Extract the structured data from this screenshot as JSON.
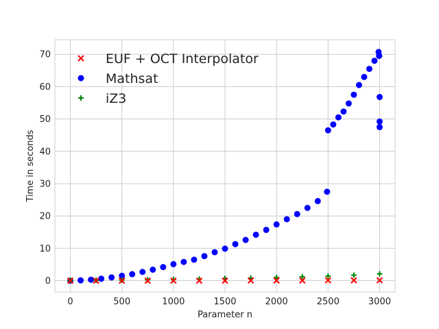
{
  "chart_data": {
    "type": "scatter",
    "xlabel": "Parameter n",
    "ylabel": "Time in seconds",
    "xlim": [
      -150,
      3150
    ],
    "ylim": [
      -3.5,
      74.5
    ],
    "xticks": [
      0,
      500,
      1000,
      1500,
      2000,
      2500,
      3000
    ],
    "yticks": [
      0,
      10,
      20,
      30,
      40,
      50,
      60,
      70
    ],
    "grid": true,
    "legend_position": "top-left",
    "series": [
      {
        "name": "EUF + OCT Interpolator",
        "marker": "x",
        "color": "#ff0000",
        "x": [
          0,
          250,
          500,
          750,
          1000,
          1250,
          1500,
          1750,
          2000,
          2250,
          2500,
          2750,
          3000
        ],
        "y": [
          0.0,
          0.0,
          0.0,
          0.0,
          0.0,
          0.0,
          0.0,
          0.05,
          0.05,
          0.05,
          0.1,
          0.1,
          0.1
        ]
      },
      {
        "name": "Mathsat",
        "marker": "o",
        "color": "#0000ff",
        "x": [
          0,
          100,
          200,
          300,
          400,
          500,
          600,
          700,
          800,
          900,
          1000,
          1100,
          1200,
          1300,
          1400,
          1500,
          1600,
          1700,
          1800,
          1900,
          2000,
          2100,
          2200,
          2300,
          2400,
          2490,
          2500,
          2550,
          2600,
          2650,
          2700,
          2750,
          2800,
          2850,
          2900,
          2950,
          2990,
          2995,
          3000,
          3000,
          3000
        ],
        "y": [
          0.0,
          0.1,
          0.3,
          0.6,
          1.0,
          1.5,
          2.0,
          2.7,
          3.4,
          4.2,
          5.1,
          5.8,
          6.5,
          7.6,
          8.8,
          9.9,
          11.3,
          12.6,
          14.2,
          15.7,
          17.4,
          19.0,
          20.6,
          22.5,
          24.6,
          27.5,
          46.5,
          48.3,
          50.5,
          52.3,
          54.8,
          57.5,
          60.5,
          63.0,
          65.5,
          68.0,
          70.7,
          69.5,
          56.8,
          49.2,
          47.5
        ]
      },
      {
        "name": "iZ3",
        "marker": "+",
        "color": "#008000",
        "x": [
          0,
          250,
          500,
          750,
          1000,
          1250,
          1500,
          1750,
          2000,
          2250,
          2500,
          2750,
          3000
        ],
        "y": [
          0.1,
          0.15,
          0.2,
          0.3,
          0.4,
          0.5,
          0.7,
          0.8,
          1.0,
          1.2,
          1.4,
          1.7,
          2.1
        ]
      }
    ]
  }
}
